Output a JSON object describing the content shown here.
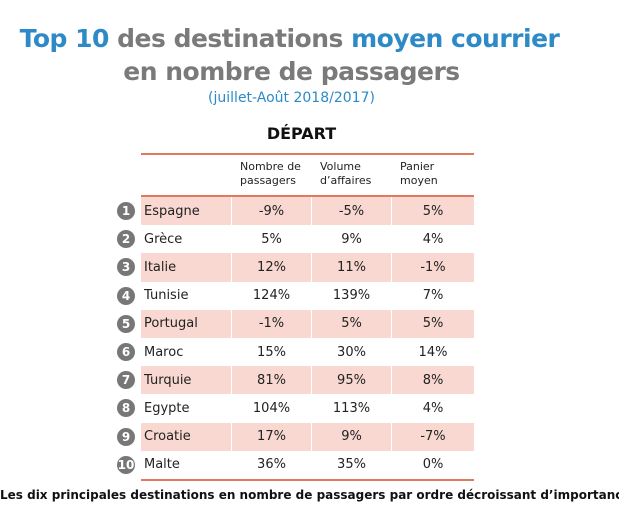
{
  "title": {
    "part1": "Top 10",
    "part2": " des destinations ",
    "part3": "moyen courrier",
    "line2": "en nombre de passagers",
    "subtitle": "(juillet-Août 2018/2017)"
  },
  "section": "DÉPART",
  "columns": [
    "Nombre de passagers",
    "Volume d’affaires",
    "Panier moyen"
  ],
  "rows": [
    {
      "rank": "1",
      "name": "Espagne",
      "values": [
        "-9%",
        "-5%",
        "5%"
      ]
    },
    {
      "rank": "2",
      "name": "Grèce",
      "values": [
        "5%",
        "9%",
        "4%"
      ]
    },
    {
      "rank": "3",
      "name": "Italie",
      "values": [
        "12%",
        "11%",
        "-1%"
      ]
    },
    {
      "rank": "4",
      "name": "Tunisie",
      "values": [
        "124%",
        "139%",
        "7%"
      ]
    },
    {
      "rank": "5",
      "name": "Portugal",
      "values": [
        "-1%",
        "5%",
        "5%"
      ]
    },
    {
      "rank": "6",
      "name": "Maroc",
      "values": [
        "15%",
        "30%",
        "14%"
      ]
    },
    {
      "rank": "7",
      "name": "Turquie",
      "values": [
        "81%",
        "95%",
        "8%"
      ]
    },
    {
      "rank": "8",
      "name": "Egypte",
      "values": [
        "104%",
        "113%",
        "4%"
      ]
    },
    {
      "rank": "9",
      "name": "Croatie",
      "values": [
        "17%",
        "9%",
        "-7%"
      ]
    },
    {
      "rank": "10",
      "name": "Malte",
      "values": [
        "36%",
        "35%",
        "0%"
      ]
    }
  ],
  "footer": "Les dix principales destinations en nombre de passagers par ordre décroissant d’importance",
  "colors": {
    "accent_blue": "#2d8ac7",
    "title_gray": "#7a7a7a",
    "rule": "#e07a5f",
    "row_shade": "#f8d8d1"
  }
}
